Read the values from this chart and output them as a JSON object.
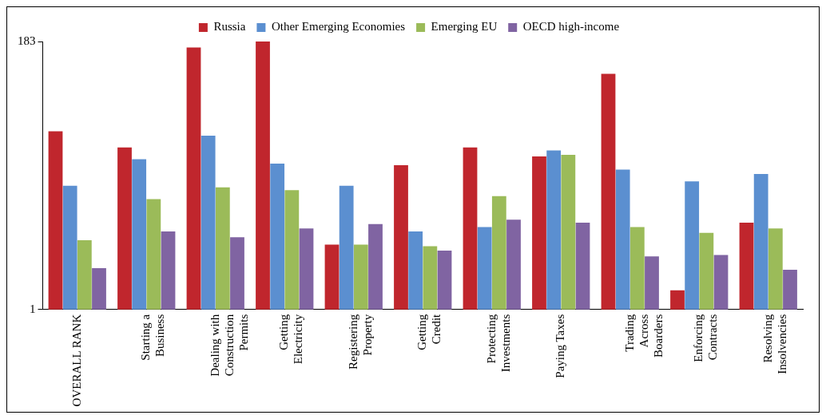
{
  "chart_data": {
    "type": "bar",
    "categories": [
      "OVERALL RANK",
      "Starting a Business",
      "Dealing with Construction Permits",
      "Getting Electricity",
      "Registering Property",
      "Getting Credit",
      "Protecting Investments",
      "Paying Taxes",
      "Trading Across Boarders",
      "Enforcing Contracts",
      "Resolving Insolvencies"
    ],
    "series": [
      {
        "name": "Russia",
        "color": "#c0262d",
        "values": [
          122,
          111,
          179,
          183,
          45,
          99,
          111,
          105,
          161,
          14,
          60
        ]
      },
      {
        "name": "Other Emerging Economies",
        "color": "#5b8fd0",
        "values": [
          85,
          103,
          119,
          100,
          85,
          54,
          57,
          109,
          96,
          88,
          93
        ]
      },
      {
        "name": "Emerging EU",
        "color": "#9bbb59",
        "values": [
          48,
          76,
          84,
          82,
          45,
          44,
          78,
          106,
          57,
          53,
          56
        ]
      },
      {
        "name": "OECD high-income",
        "color": "#8064a2",
        "values": [
          29,
          54,
          50,
          56,
          59,
          41,
          62,
          60,
          37,
          38,
          28
        ]
      }
    ],
    "ylim": [
      1,
      183
    ],
    "yticks": [
      1,
      183
    ],
    "grid": false,
    "legend": "top"
  }
}
